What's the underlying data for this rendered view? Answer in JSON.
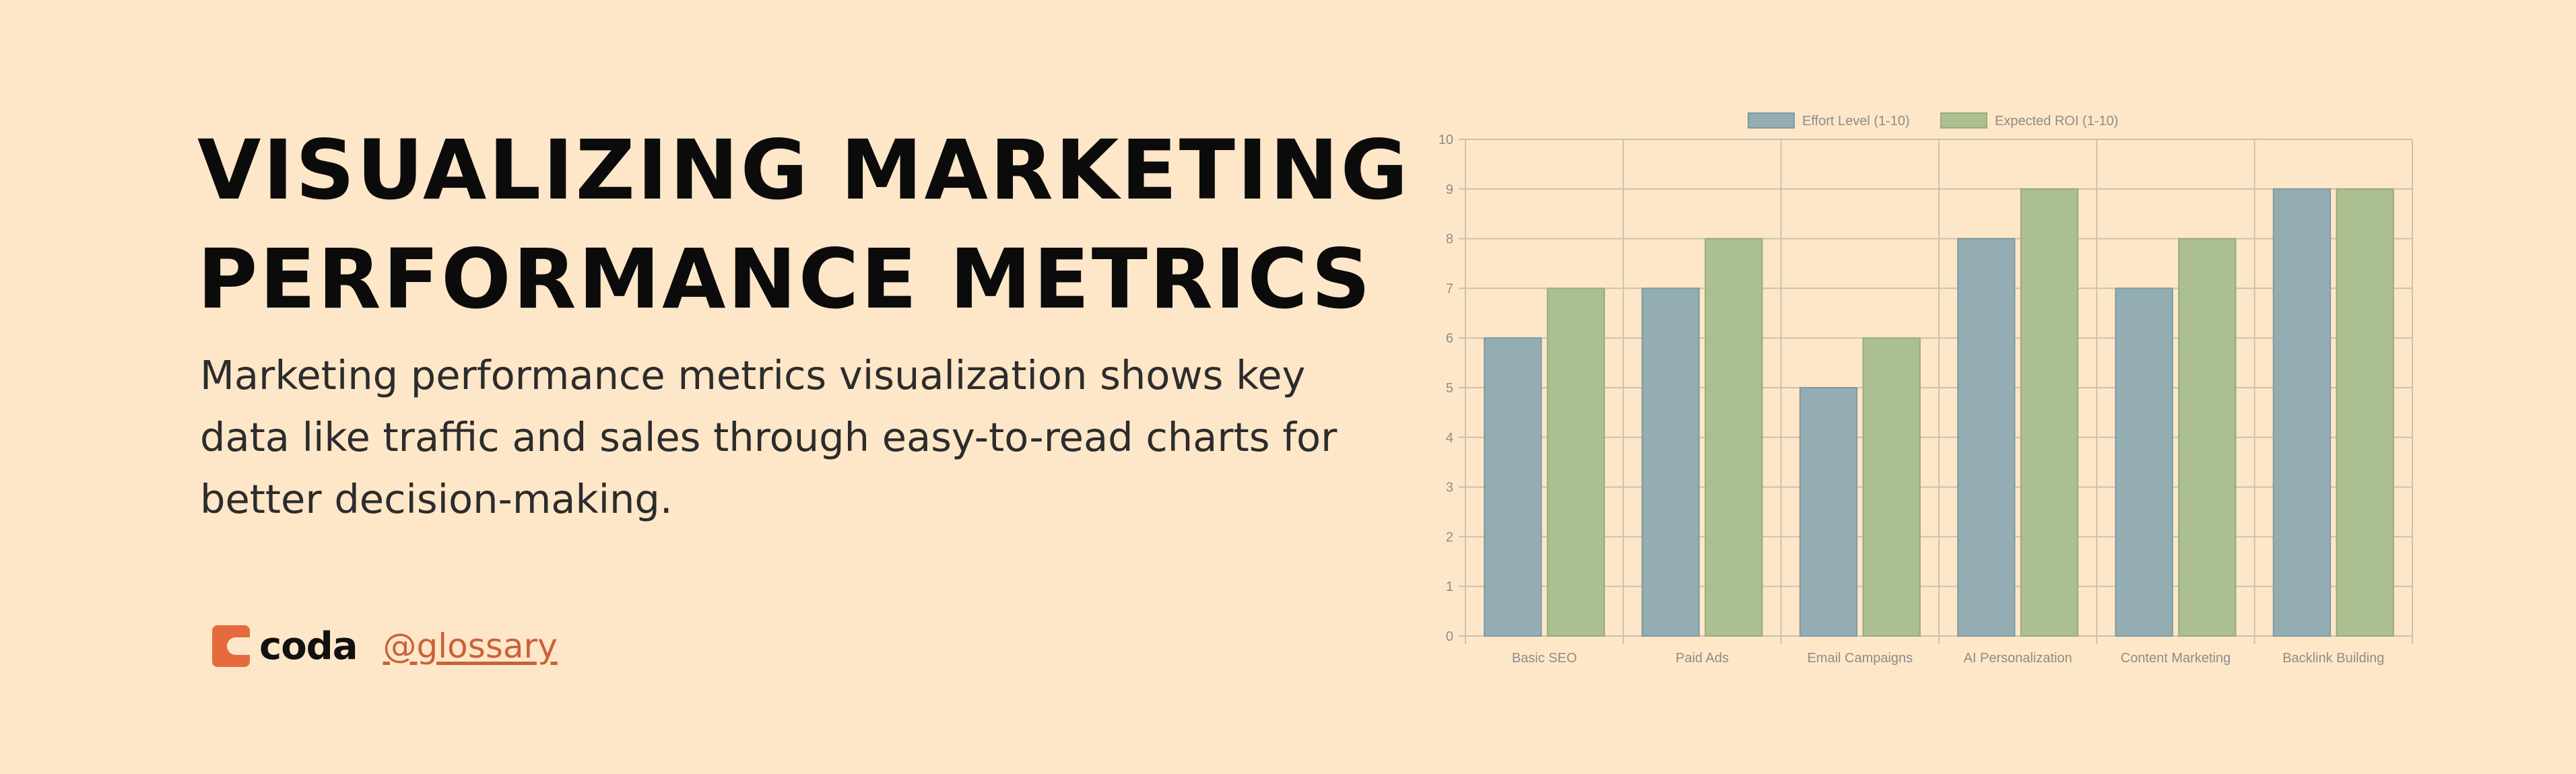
{
  "headline": {
    "line1": "VISUALIZING MARKETING",
    "line2": "PERFORMANCE METRICS"
  },
  "subtitle": "Marketing performance metrics visualization shows key data like traffic and sales through easy-to-read charts for better decision-making.",
  "brand": {
    "name": "coda",
    "handle": "@glossary",
    "logo_icon": "coda-logo-icon",
    "accent_color": "#e56b3e"
  },
  "colors": {
    "background": "#fee7c8",
    "series1": "#93adb3",
    "series2": "#acbf90"
  },
  "chart_data": {
    "type": "bar",
    "categories": [
      "Basic SEO",
      "Paid Ads",
      "Email Campaigns",
      "AI Personalization",
      "Content Marketing",
      "Backlink Building"
    ],
    "series": [
      {
        "name": "Effort Level (1-10)",
        "values": [
          6,
          7,
          5,
          8,
          7,
          9
        ]
      },
      {
        "name": "Expected ROI (1-10)",
        "values": [
          7,
          8,
          6,
          9,
          8,
          9
        ]
      }
    ],
    "ylim": [
      0,
      10
    ],
    "yticks": [
      0,
      1,
      2,
      3,
      4,
      5,
      6,
      7,
      8,
      9,
      10
    ],
    "grid": true,
    "legend_position": "top"
  }
}
